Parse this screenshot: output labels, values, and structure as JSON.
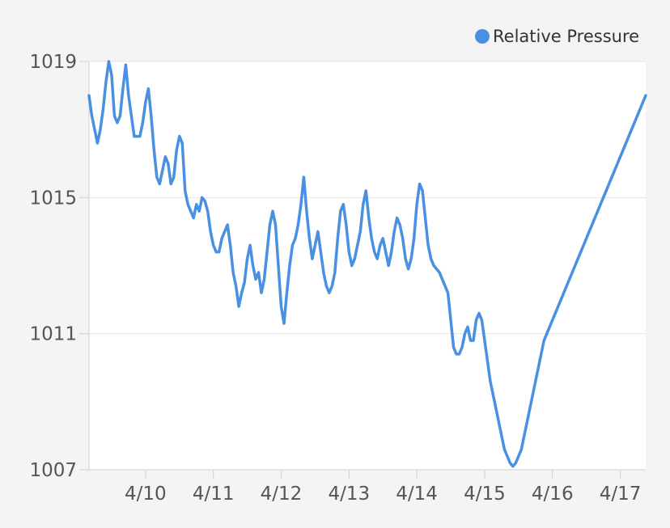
{
  "chart_data": {
    "type": "line",
    "title": "",
    "xlabel": "",
    "ylabel": "",
    "grid": true,
    "legend_position": "top-right",
    "ylim": [
      1007,
      1019
    ],
    "xlim": [
      "4/9 04:00",
      "4/17 09:00"
    ],
    "y_ticks": [
      "1007",
      "1011",
      "1015",
      "1019"
    ],
    "x_ticks": [
      "4/10",
      "4/11",
      "4/12",
      "4/13",
      "4/14",
      "4/15",
      "4/16",
      "4/17"
    ],
    "series": [
      {
        "name": "Relative Pressure",
        "color": "#4a90e2",
        "x": [
          "4/9 04:00",
          "4/9 05:00",
          "4/9 06:00",
          "4/9 07:00",
          "4/9 08:00",
          "4/9 09:00",
          "4/9 10:00",
          "4/9 11:00",
          "4/9 12:00",
          "4/9 13:00",
          "4/9 14:00",
          "4/9 15:00",
          "4/9 16:00",
          "4/9 17:00",
          "4/9 18:00",
          "4/9 19:00",
          "4/9 20:00",
          "4/9 21:00",
          "4/9 22:00",
          "4/9 23:00",
          "4/10 00:00",
          "4/10 01:00",
          "4/10 02:00",
          "4/10 03:00",
          "4/10 04:00",
          "4/10 05:00",
          "4/10 06:00",
          "4/10 07:00",
          "4/10 08:00",
          "4/10 09:00",
          "4/10 10:00",
          "4/10 11:00",
          "4/10 12:00",
          "4/10 13:00",
          "4/10 14:00",
          "4/10 15:00",
          "4/10 16:00",
          "4/10 17:00",
          "4/10 18:00",
          "4/10 19:00",
          "4/10 20:00",
          "4/10 21:00",
          "4/10 22:00",
          "4/10 23:00",
          "4/11 00:00",
          "4/11 01:00",
          "4/11 02:00",
          "4/11 03:00",
          "4/11 04:00",
          "4/11 05:00",
          "4/11 06:00",
          "4/11 07:00",
          "4/11 08:00",
          "4/11 09:00",
          "4/11 10:00",
          "4/11 11:00",
          "4/11 12:00",
          "4/11 13:00",
          "4/11 14:00",
          "4/11 15:00",
          "4/11 16:00",
          "4/11 17:00",
          "4/11 18:00",
          "4/11 19:00",
          "4/11 20:00",
          "4/11 21:00",
          "4/11 22:00",
          "4/11 23:00",
          "4/12 00:00",
          "4/12 01:00",
          "4/12 02:00",
          "4/12 03:00",
          "4/12 04:00",
          "4/12 05:00",
          "4/12 06:00",
          "4/12 07:00",
          "4/12 08:00",
          "4/12 09:00",
          "4/12 10:00",
          "4/12 11:00",
          "4/12 12:00",
          "4/12 13:00",
          "4/12 14:00",
          "4/12 15:00",
          "4/12 16:00",
          "4/12 17:00",
          "4/12 18:00",
          "4/12 19:00",
          "4/12 20:00",
          "4/12 21:00",
          "4/12 22:00",
          "4/12 23:00",
          "4/13 00:00",
          "4/13 01:00",
          "4/13 02:00",
          "4/13 03:00",
          "4/13 04:00",
          "4/13 05:00",
          "4/13 06:00",
          "4/13 07:00",
          "4/13 08:00",
          "4/13 09:00",
          "4/13 10:00",
          "4/13 11:00",
          "4/13 12:00",
          "4/13 13:00",
          "4/13 14:00",
          "4/13 15:00",
          "4/13 16:00",
          "4/13 17:00",
          "4/13 18:00",
          "4/13 19:00",
          "4/13 20:00",
          "4/13 21:00",
          "4/13 22:00",
          "4/13 23:00",
          "4/14 00:00",
          "4/14 01:00",
          "4/14 02:00",
          "4/14 03:00",
          "4/14 04:00",
          "4/14 05:00",
          "4/14 06:00",
          "4/14 07:00",
          "4/14 08:00",
          "4/14 09:00",
          "4/14 10:00",
          "4/14 11:00",
          "4/14 12:00",
          "4/14 13:00",
          "4/14 14:00",
          "4/14 15:00",
          "4/14 16:00",
          "4/14 17:00",
          "4/14 18:00",
          "4/14 19:00",
          "4/14 20:00",
          "4/14 21:00",
          "4/14 22:00",
          "4/14 23:00",
          "4/15 00:00",
          "4/15 01:00",
          "4/15 02:00",
          "4/15 03:00",
          "4/15 04:00",
          "4/15 05:00",
          "4/15 06:00",
          "4/15 07:00",
          "4/15 08:00",
          "4/15 09:00",
          "4/15 10:00",
          "4/15 11:00",
          "4/15 12:00",
          "4/15 13:00",
          "4/15 14:00",
          "4/15 15:00",
          "4/15 16:00",
          "4/15 17:00",
          "4/15 18:00",
          "4/15 19:00",
          "4/15 20:00",
          "4/15 21:00",
          "4/15 22:00",
          "4/15 23:00",
          "4/16 00:00",
          "4/16 01:00",
          "4/16 02:00",
          "4/16 03:00",
          "4/16 04:00",
          "4/16 05:00",
          "4/16 06:00",
          "4/16 07:00",
          "4/16 08:00",
          "4/16 09:00",
          "4/16 10:00",
          "4/16 11:00",
          "4/16 12:00",
          "4/16 13:00",
          "4/16 14:00",
          "4/16 15:00",
          "4/16 16:00",
          "4/16 17:00",
          "4/16 18:00",
          "4/16 19:00",
          "4/16 20:00",
          "4/16 21:00",
          "4/16 22:00",
          "4/16 23:00",
          "4/17 00:00",
          "4/17 01:00",
          "4/17 02:00",
          "4/17 03:00",
          "4/17 04:00",
          "4/17 05:00",
          "4/17 06:00",
          "4/17 07:00",
          "4/17 08:00",
          "4/17 09:00"
        ],
        "y": [
          1018.0,
          1017.4,
          1017.0,
          1016.6,
          1017.0,
          1017.6,
          1018.4,
          1019.0,
          1018.6,
          1017.4,
          1017.2,
          1017.4,
          1018.2,
          1018.9,
          1018.0,
          1017.4,
          1016.8,
          1016.8,
          1016.8,
          1017.2,
          1017.8,
          1018.2,
          1017.4,
          1016.4,
          1015.6,
          1015.4,
          1015.8,
          1016.2,
          1016.0,
          1015.4,
          1015.6,
          1016.4,
          1016.8,
          1016.6,
          1015.2,
          1014.8,
          1014.6,
          1014.4,
          1014.8,
          1014.6,
          1015.0,
          1014.9,
          1014.6,
          1014.0,
          1013.6,
          1013.4,
          1013.4,
          1013.8,
          1014.0,
          1014.2,
          1013.6,
          1012.8,
          1012.4,
          1011.8,
          1012.2,
          1012.5,
          1013.2,
          1013.6,
          1013.0,
          1012.6,
          1012.8,
          1012.2,
          1012.6,
          1013.4,
          1014.2,
          1014.6,
          1014.2,
          1013.0,
          1011.8,
          1011.3,
          1012.2,
          1013.0,
          1013.6,
          1013.8,
          1014.2,
          1014.8,
          1015.6,
          1014.6,
          1013.8,
          1013.2,
          1013.6,
          1014.0,
          1013.4,
          1012.8,
          1012.4,
          1012.2,
          1012.4,
          1012.8,
          1013.8,
          1014.6,
          1014.8,
          1014.2,
          1013.4,
          1013.0,
          1013.2,
          1013.6,
          1014.0,
          1014.8,
          1015.2,
          1014.4,
          1013.8,
          1013.4,
          1013.2,
          1013.6,
          1013.8,
          1013.4,
          1013.0,
          1013.4,
          1014.0,
          1014.4,
          1014.2,
          1013.8,
          1013.2,
          1012.9,
          1013.2,
          1013.8,
          1014.8,
          1015.4,
          1015.2,
          1014.4,
          1013.6,
          1013.2,
          1013.0,
          1012.9,
          1012.8,
          1012.6,
          1012.4,
          1012.2,
          1011.4,
          1010.6,
          1010.4,
          1010.4,
          1010.6,
          1011.0,
          1011.2,
          1010.8,
          1010.8,
          1011.4,
          1011.6,
          1011.4,
          1010.8,
          1010.2,
          1009.6,
          1009.2,
          1008.8,
          1008.4,
          1008.0,
          1007.6,
          1007.4,
          1007.2,
          1007.1,
          1007.2,
          1007.4,
          1007.6,
          1008.0,
          1008.4,
          1008.8,
          1009.2,
          1009.6,
          1010.0,
          1010.4,
          1010.8,
          1011.0,
          1011.2,
          1011.4,
          1011.6,
          1011.8,
          1012.0,
          1012.2,
          1012.4,
          1012.6,
          1012.8,
          1013.0,
          1013.2,
          1013.4,
          1013.6,
          1013.8,
          1014.0,
          1014.2,
          1014.4,
          1014.6,
          1014.8,
          1015.0,
          1015.2,
          1015.4,
          1015.6,
          1015.8,
          1016.0,
          1016.2,
          1016.4,
          1016.6,
          1016.8,
          1017.0,
          1017.2,
          1017.4,
          1017.6,
          1017.8,
          1018.0
        ]
      }
    ]
  }
}
